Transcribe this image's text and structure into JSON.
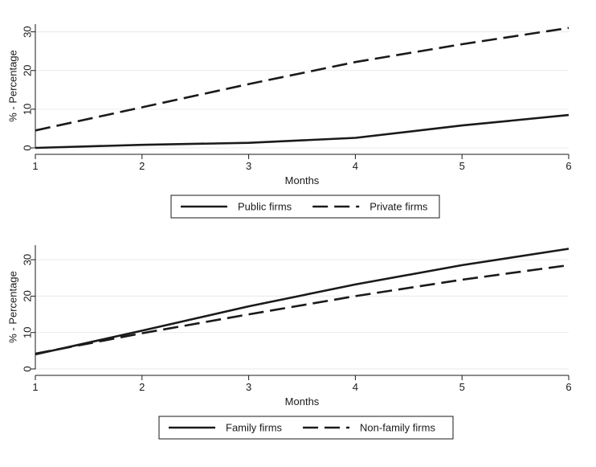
{
  "chart_data": [
    {
      "type": "line",
      "title": "",
      "xlabel": "Months",
      "ylabel": "% - Percentage",
      "x": [
        1,
        2,
        3,
        4,
        5,
        6
      ],
      "xlim": [
        1,
        6
      ],
      "ylim": [
        0,
        32
      ],
      "x_ticks": [
        1,
        2,
        3,
        4,
        5,
        6
      ],
      "y_ticks": [
        0,
        10,
        20,
        30
      ],
      "grid": true,
      "legend_position": "bottom",
      "series": [
        {
          "name": "Public firms",
          "style": "solid",
          "color": "#1a1a1a",
          "values": [
            0.0,
            0.8,
            1.3,
            2.6,
            5.8,
            8.5
          ]
        },
        {
          "name": "Private firms",
          "style": "dashed",
          "color": "#1a1a1a",
          "values": [
            4.5,
            10.5,
            16.5,
            22.2,
            26.8,
            31.0
          ]
        }
      ]
    },
    {
      "type": "line",
      "title": "",
      "xlabel": "Months",
      "ylabel": "% - Percentage",
      "x": [
        1,
        2,
        3,
        4,
        5,
        6
      ],
      "xlim": [
        1,
        6
      ],
      "ylim": [
        0,
        34
      ],
      "x_ticks": [
        1,
        2,
        3,
        4,
        5,
        6
      ],
      "y_ticks": [
        0,
        10,
        20,
        30
      ],
      "grid": true,
      "legend_position": "bottom",
      "series": [
        {
          "name": "Family firms",
          "style": "solid",
          "color": "#1a1a1a",
          "values": [
            4.0,
            10.5,
            17.2,
            23.2,
            28.5,
            33.0
          ]
        },
        {
          "name": "Non-family firms",
          "style": "dashed",
          "color": "#1a1a1a",
          "values": [
            4.2,
            9.8,
            15.0,
            20.0,
            24.5,
            28.5
          ]
        }
      ]
    }
  ]
}
